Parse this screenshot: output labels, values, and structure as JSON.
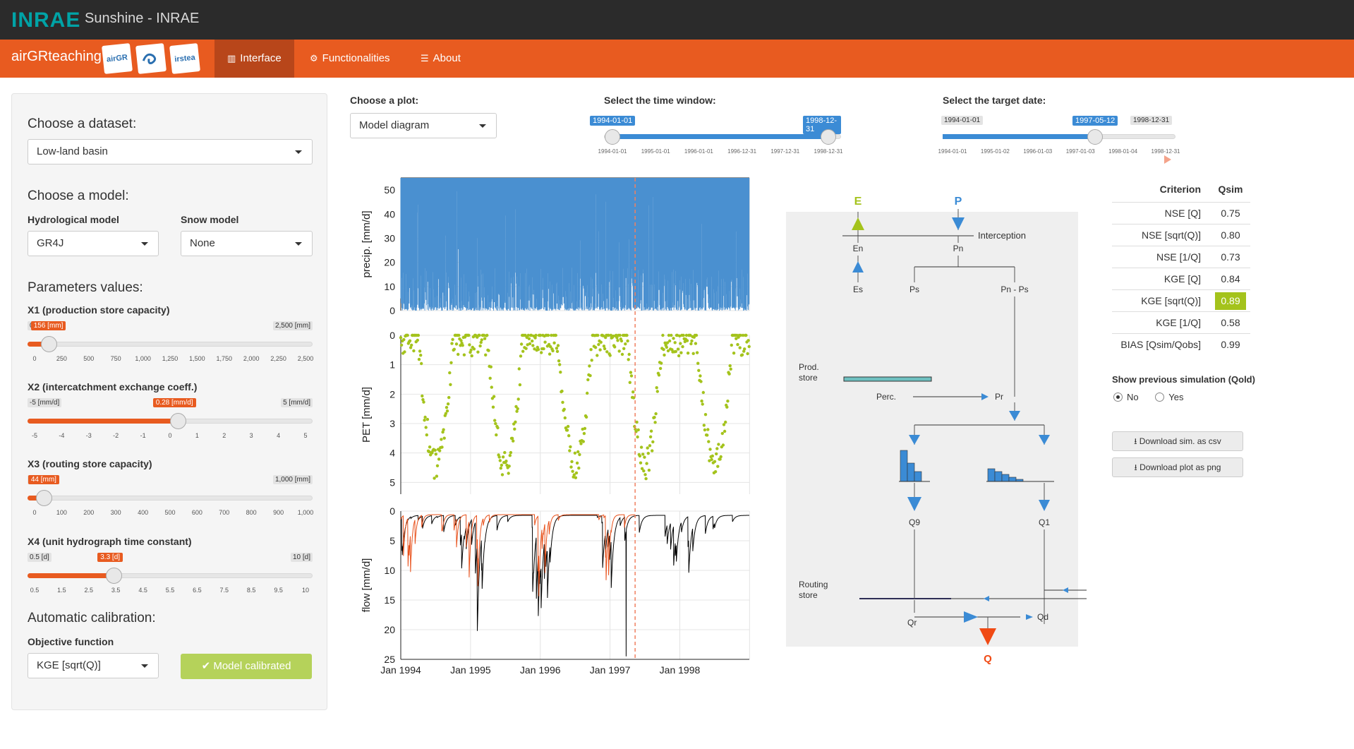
{
  "topbar": {
    "logo": "INRAE",
    "title": "Sunshine - INRAE"
  },
  "navbar": {
    "brand": "airGRteaching",
    "logos": [
      "airGR",
      "hydro",
      "irstea"
    ],
    "items": [
      {
        "label": "Interface",
        "icon": "bar-chart-icon"
      },
      {
        "label": "Functionalities",
        "icon": "gear-icon"
      },
      {
        "label": "About",
        "icon": "menu-icon"
      }
    ]
  },
  "sidebar": {
    "dataset_heading": "Choose a dataset:",
    "dataset_value": "Low-land basin",
    "model_heading": "Choose a model:",
    "hydro_label": "Hydrological model",
    "hydro_value": "GR4J",
    "snow_label": "Snow model",
    "snow_value": "None",
    "params_heading": "Parameters values:",
    "params": [
      {
        "label": "X1 (production store capacity)",
        "min_label": "0",
        "max_label": "2,500 [mm]",
        "cur_label": "156 [mm]",
        "fraction": 0.062,
        "ticks": [
          "0",
          "250",
          "500",
          "750",
          "1,000",
          "1,250",
          "1,500",
          "1,750",
          "2,000",
          "2,250",
          "2,500"
        ]
      },
      {
        "label": "X2 (intercatchment exchange coeff.)",
        "min_label": "-5 [mm/d]",
        "max_label": "5 [mm/d]",
        "cur_label": "0.28 [mm/d]",
        "fraction": 0.528,
        "ticks": [
          "-5",
          "-4",
          "-3",
          "-2",
          "-1",
          "0",
          "1",
          "2",
          "3",
          "4",
          "5"
        ]
      },
      {
        "label": "X3 (routing store capacity)",
        "min_label": "0",
        "max_label": "1,000 [mm]",
        "cur_label": "44 [mm]",
        "fraction": 0.044,
        "ticks": [
          "0",
          "100",
          "200",
          "300",
          "400",
          "500",
          "600",
          "700",
          "800",
          "900",
          "1,000"
        ]
      },
      {
        "label": "X4 (unit hydrograph time constant)",
        "min_label": "0.5 [d]",
        "max_label": "10 [d]",
        "cur_label": "3.3 [d]",
        "fraction": 0.295,
        "ticks": [
          "0.5",
          "1.5",
          "2.5",
          "3.5",
          "4.5",
          "5.5",
          "6.5",
          "7.5",
          "8.5",
          "9.5",
          "10"
        ]
      }
    ],
    "calib_heading": "Automatic calibration:",
    "objective_label": "Objective function",
    "objective_value": "KGE [sqrt(Q)]",
    "calib_button": "Model calibrated"
  },
  "controls": {
    "plot_label": "Choose a plot:",
    "plot_value": "Model diagram",
    "window_label": "Select the time window:",
    "window_start": "1994-01-01",
    "window_end": "1998-12-31",
    "window_ticks": [
      "1994-01-01",
      "1995-01-01",
      "1996-01-01",
      "1996-12-31",
      "1997-12-31",
      "1998-12-31"
    ],
    "target_label": "Select the target date:",
    "target_min": "1994-01-01",
    "target_value": "1997-05-12",
    "target_max": "1998-12-31",
    "target_ticks": [
      "1994-01-01",
      "1995-01-02",
      "1996-01-03",
      "1997-01-03",
      "1998-01-04",
      "1998-12-31"
    ]
  },
  "chart_data": [
    {
      "type": "bar",
      "ylabel": "precip. [mm/d]",
      "yticks": [
        "0",
        "10",
        "20",
        "30",
        "40",
        "50"
      ],
      "ylim": [
        55,
        0
      ],
      "xlim": [
        "1994-01-01",
        "1998-12-31"
      ],
      "target_date": "1997-05-12",
      "color": "#4a90d0"
    },
    {
      "type": "scatter",
      "ylabel": "PET [mm/d]",
      "yticks": [
        "0",
        "1",
        "2",
        "3",
        "4",
        "5"
      ],
      "ylim": [
        0,
        5.4
      ],
      "color": "#a4c31c"
    },
    {
      "type": "line",
      "ylabel": "flow [mm/d]",
      "yticks": [
        "0",
        "5",
        "10",
        "15",
        "20",
        "25"
      ],
      "ylim": [
        0,
        25
      ],
      "xticks": [
        "Jan 1994",
        "Jan 1995",
        "Jan 1996",
        "Jan 1997",
        "Jan 1998"
      ],
      "series": [
        {
          "color": "#e8501a"
        },
        {
          "color": "#000000"
        }
      ]
    }
  ],
  "diagram": {
    "E": "E",
    "P": "P",
    "interception": "Interception",
    "En": "En",
    "Pn": "Pn",
    "Es": "Es",
    "Ps": "Ps",
    "PnPs": "Pn - Ps",
    "prod_store": [
      "Prod.",
      "store"
    ],
    "perc": "Perc.",
    "Pr": "Pr",
    "Q9": "Q9",
    "Q1": "Q1",
    "routing_store": [
      "Routing",
      "store"
    ],
    "Qr": "Qr",
    "Qd": "Qd",
    "Q": "Q"
  },
  "criteria": {
    "head_criterion": "Criterion",
    "head_value": "Qsim",
    "rows": [
      {
        "name": "NSE [Q]",
        "value": "0.75"
      },
      {
        "name": "NSE [sqrt(Q)]",
        "value": "0.80"
      },
      {
        "name": "NSE [1/Q]",
        "value": "0.73"
      },
      {
        "name": "KGE [Q]",
        "value": "0.84"
      },
      {
        "name": "KGE [sqrt(Q)]",
        "value": "0.89",
        "highlight": true
      },
      {
        "name": "KGE [1/Q]",
        "value": "0.58"
      },
      {
        "name": "BIAS [Qsim/Qobs]",
        "value": "0.99"
      }
    ],
    "highlight_color": "#a4c31c"
  },
  "previous_sim": {
    "label": "Show previous simulation (Qold)",
    "no": "No",
    "yes": "Yes"
  },
  "downloads": {
    "csv": "Download sim. as csv",
    "png": "Download plot as png"
  }
}
